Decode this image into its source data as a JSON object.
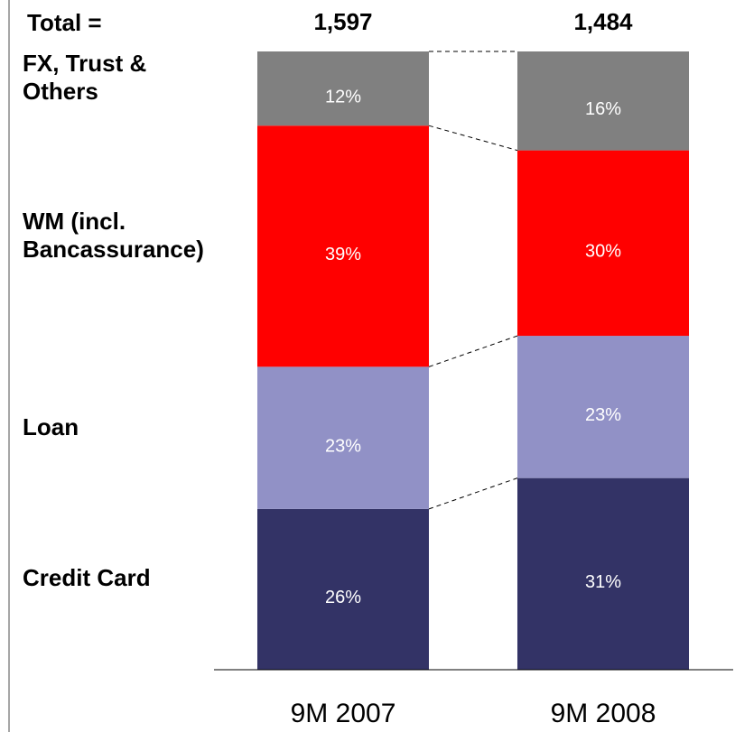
{
  "chart_data": {
    "type": "bar",
    "stacked": true,
    "categories": [
      "9M 2007",
      "9M 2008"
    ],
    "ylim": [
      0,
      100
    ],
    "totals": {
      "label": "Total =",
      "values": [
        1597,
        1484
      ],
      "value_labels": [
        "1,597",
        "1,484"
      ]
    },
    "series": [
      {
        "name": "Credit Card",
        "color": "#333366",
        "values": [
          26,
          31
        ],
        "value_labels": [
          "26%",
          "31%"
        ]
      },
      {
        "name": "Loan",
        "color": "#9191c6",
        "values": [
          23,
          23
        ],
        "value_labels": [
          "23%",
          "23%"
        ]
      },
      {
        "name": "WM (incl.\nBancassurance)",
        "color": "#ff0000",
        "values": [
          39,
          30
        ],
        "value_labels": [
          "39%",
          "30%"
        ]
      },
      {
        "name": "FX, Trust &\nOthers",
        "color": "#808080",
        "values": [
          12,
          16
        ],
        "value_labels": [
          "12%",
          "16%"
        ]
      }
    ]
  }
}
